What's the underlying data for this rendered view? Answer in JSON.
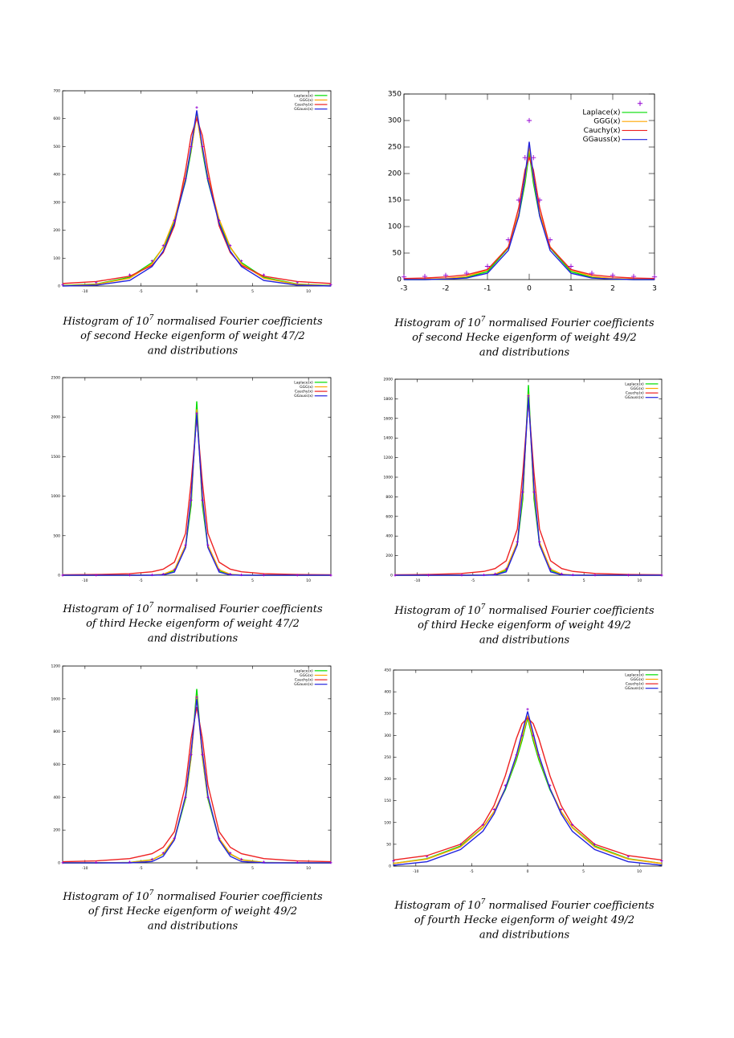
{
  "chart_data": [
    {
      "type": "line",
      "xlim": [
        -12,
        12
      ],
      "ylim": [
        0,
        700
      ],
      "xticks": [
        -10,
        -5,
        0,
        5,
        10
      ],
      "yticks": [
        0,
        100,
        200,
        300,
        400,
        500,
        600,
        700
      ],
      "x": [
        -12,
        -9,
        -6,
        -4,
        -3,
        -2,
        -1,
        -0.5,
        0,
        0.5,
        1,
        2,
        3,
        4,
        6,
        9,
        12
      ],
      "points": {
        "color": "#9400d3",
        "values": [
          5,
          12,
          40,
          90,
          145,
          235,
          385,
          500,
          640,
          500,
          385,
          235,
          145,
          90,
          40,
          12,
          5
        ]
      },
      "series": [
        {
          "name": "Laplace(x)",
          "color": "#00dd00",
          "values": [
            2,
            7,
            31,
            84,
            138,
            228,
            376,
            484,
            620,
            484,
            376,
            228,
            138,
            84,
            31,
            7,
            2
          ]
        },
        {
          "name": "GGG(x)",
          "color": "#ffa500",
          "values": [
            1,
            6,
            28,
            80,
            140,
            240,
            390,
            490,
            610,
            490,
            390,
            240,
            140,
            80,
            28,
            6,
            1
          ]
        },
        {
          "name": "Cauchy(x)",
          "color": "#ee2222",
          "values": [
            9,
            16,
            35,
            74,
            120,
            216,
            415,
            540,
            600,
            540,
            415,
            216,
            120,
            74,
            35,
            16,
            9
          ]
        },
        {
          "name": "GGauss(x)",
          "color": "#2222dd",
          "values": [
            0,
            3,
            20,
            70,
            125,
            225,
            380,
            500,
            630,
            500,
            380,
            225,
            125,
            70,
            20,
            3,
            0
          ]
        }
      ],
      "caption": [
        "Histogram of 10",
        "7",
        " normalised Fourier coefficients",
        "of second Hecke eigenform of weight 47/2",
        "and distributions"
      ]
    },
    {
      "type": "line",
      "xlim": [
        -3,
        3
      ],
      "ylim": [
        0,
        350
      ],
      "xticks": [
        -3,
        -2,
        -1,
        0,
        1,
        2,
        3
      ],
      "yticks": [
        0,
        50,
        100,
        150,
        200,
        250,
        300,
        350
      ],
      "x": [
        -3,
        -2.5,
        -2,
        -1.5,
        -1,
        -0.5,
        -0.25,
        -0.1,
        0,
        0.1,
        0.25,
        0.5,
        1,
        1.5,
        2,
        2.5,
        3
      ],
      "points": {
        "color": "#9400d3",
        "values": [
          5,
          6,
          8,
          12,
          25,
          75,
          150,
          230,
          300,
          230,
          150,
          75,
          25,
          12,
          8,
          6,
          5
        ]
      },
      "series": [
        {
          "name": "Laplace(x)",
          "color": "#00dd00",
          "values": [
            0,
            0,
            1,
            4,
            15,
            60,
            120,
            182,
            240,
            182,
            120,
            60,
            15,
            4,
            1,
            0,
            0
          ]
        },
        {
          "name": "GGG(x)",
          "color": "#ffa500",
          "values": [
            0,
            1,
            2,
            6,
            18,
            62,
            125,
            190,
            250,
            190,
            125,
            62,
            18,
            6,
            2,
            1,
            0
          ]
        },
        {
          "name": "Cauchy(x)",
          "color": "#ee2222",
          "values": [
            2,
            3,
            5,
            9,
            19,
            61,
            136,
            207,
            230,
            207,
            136,
            61,
            19,
            9,
            5,
            3,
            2
          ]
        },
        {
          "name": "GGauss(x)",
          "color": "#2222dd",
          "values": [
            0,
            0,
            1,
            3,
            12,
            55,
            120,
            195,
            260,
            195,
            120,
            55,
            12,
            3,
            1,
            0,
            0
          ]
        }
      ],
      "caption": [
        "Histogram of 10",
        "7",
        " normalised Fourier coefficients",
        "of second Hecke eigenform of weight 49/2",
        "and distributions"
      ]
    },
    {
      "type": "line",
      "xlim": [
        -12,
        12
      ],
      "ylim": [
        0,
        2500
      ],
      "xticks": [
        -10,
        -5,
        0,
        5,
        10
      ],
      "yticks": [
        0,
        500,
        1000,
        1500,
        2000,
        2500
      ],
      "x": [
        -12,
        -9,
        -6,
        -4,
        -3,
        -2,
        -1,
        -0.5,
        0,
        0.5,
        1,
        2,
        3,
        4,
        6,
        9,
        12
      ],
      "points": {
        "color": "#9400d3",
        "values": [
          0,
          1,
          2,
          5,
          15,
          70,
          380,
          950,
          2050,
          950,
          380,
          70,
          15,
          5,
          2,
          1,
          0
        ]
      },
      "series": [
        {
          "name": "Laplace(x)",
          "color": "#00dd00",
          "values": [
            0,
            0,
            0,
            2,
            9,
            58,
            357,
            885,
            2200,
            885,
            357,
            58,
            9,
            2,
            0,
            0,
            0
          ]
        },
        {
          "name": "GGG(x)",
          "color": "#ffa500",
          "values": [
            0,
            0,
            0,
            2,
            12,
            70,
            380,
            950,
            2100,
            950,
            380,
            70,
            12,
            2,
            0,
            0,
            0
          ]
        },
        {
          "name": "Cauchy(x)",
          "color": "#ee2222",
          "values": [
            5,
            9,
            20,
            44,
            77,
            165,
            530,
            1180,
            2000,
            1180,
            530,
            165,
            77,
            44,
            20,
            9,
            5
          ]
        },
        {
          "name": "GGauss(x)",
          "color": "#2222dd",
          "values": [
            0,
            0,
            0,
            0,
            4,
            40,
            350,
            1000,
            2050,
            1000,
            350,
            40,
            4,
            0,
            0,
            0,
            0
          ]
        }
      ],
      "caption": [
        "Histogram of 10",
        "7",
        " normalised Fourier coefficients",
        "of third Hecke eigenform of weight 47/2",
        "and distributions"
      ]
    },
    {
      "type": "line",
      "xlim": [
        -12,
        12
      ],
      "ylim": [
        0,
        2000
      ],
      "xticks": [
        -10,
        -5,
        0,
        5,
        10
      ],
      "yticks": [
        0,
        200,
        400,
        600,
        800,
        1000,
        1200,
        1400,
        1600,
        1800,
        2000
      ],
      "x": [
        -12,
        -9,
        -6,
        -4,
        -3,
        -2,
        -1,
        -0.5,
        0,
        0.5,
        1,
        2,
        3,
        4,
        6,
        9,
        12
      ],
      "points": {
        "color": "#9400d3",
        "values": [
          0,
          1,
          2,
          4,
          14,
          65,
          340,
          850,
          1830,
          850,
          340,
          65,
          14,
          4,
          2,
          1,
          0
        ]
      },
      "series": [
        {
          "name": "Laplace(x)",
          "color": "#00dd00",
          "values": [
            0,
            0,
            0,
            2,
            8,
            51,
            315,
            780,
            1940,
            780,
            315,
            51,
            8,
            2,
            0,
            0,
            0
          ]
        },
        {
          "name": "GGG(x)",
          "color": "#ffa500",
          "values": [
            0,
            0,
            0,
            2,
            11,
            62,
            335,
            840,
            1850,
            840,
            335,
            62,
            11,
            2,
            0,
            0,
            0
          ]
        },
        {
          "name": "Cauchy(x)",
          "color": "#ee2222",
          "values": [
            4,
            8,
            18,
            39,
            68,
            147,
            470,
            1050,
            1780,
            1050,
            470,
            147,
            68,
            39,
            18,
            8,
            4
          ]
        },
        {
          "name": "GGauss(x)",
          "color": "#2222dd",
          "values": [
            0,
            0,
            0,
            0,
            4,
            35,
            310,
            890,
            1820,
            890,
            310,
            35,
            4,
            0,
            0,
            0,
            0
          ]
        }
      ],
      "caption": [
        "Histogram of 10",
        "7",
        " normalised Fourier coefficients",
        "of third Hecke eigenform of weight 49/2",
        "and distributions"
      ]
    },
    {
      "type": "line",
      "xlim": [
        -12,
        12
      ],
      "ylim": [
        0,
        1200
      ],
      "xticks": [
        -10,
        -5,
        0,
        5,
        10
      ],
      "yticks": [
        0,
        200,
        400,
        600,
        800,
        1000,
        1200
      ],
      "x": [
        -12,
        -9,
        -6,
        -4,
        -3,
        -2,
        -1,
        -0.5,
        0,
        0.5,
        1,
        2,
        3,
        4,
        6,
        9,
        12
      ],
      "points": {
        "color": "#9400d3",
        "values": [
          1,
          2,
          5,
          22,
          60,
          150,
          400,
          660,
          1010,
          660,
          400,
          150,
          60,
          22,
          5,
          2,
          1
        ]
      },
      "series": [
        {
          "name": "Laplace(x)",
          "color": "#00dd00",
          "values": [
            0,
            0,
            3,
            19,
            53,
            143,
            390,
            643,
            1060,
            643,
            390,
            143,
            53,
            19,
            3,
            0,
            0
          ]
        },
        {
          "name": "GGG(x)",
          "color": "#ffa500",
          "values": [
            0,
            0,
            2,
            18,
            55,
            150,
            400,
            650,
            1020,
            650,
            400,
            150,
            55,
            18,
            2,
            0,
            0
          ]
        },
        {
          "name": "Cauchy(x)",
          "color": "#ee2222",
          "values": [
            7,
            12,
            26,
            56,
            95,
            190,
            475,
            760,
            950,
            760,
            475,
            190,
            95,
            56,
            26,
            12,
            7
          ]
        },
        {
          "name": "GGauss(x)",
          "color": "#2222dd",
          "values": [
            0,
            0,
            0,
            8,
            40,
            140,
            410,
            680,
            1000,
            680,
            410,
            140,
            40,
            8,
            0,
            0,
            0
          ]
        }
      ],
      "caption": [
        "Histogram of 10",
        "7",
        " normalised Fourier coefficients",
        "of first Hecke eigenform of weight 49/2",
        "and distributions"
      ]
    },
    {
      "type": "line",
      "xlim": [
        -12,
        12
      ],
      "ylim": [
        0,
        450
      ],
      "xticks": [
        -10,
        -5,
        0,
        5,
        10
      ],
      "yticks": [
        0,
        50,
        100,
        150,
        200,
        250,
        300,
        350,
        400,
        450
      ],
      "x": [
        -12,
        -9,
        -6,
        -4,
        -3,
        -2,
        -1,
        -0.5,
        0,
        0.5,
        1,
        2,
        3,
        4,
        6,
        9,
        12
      ],
      "points": {
        "color": "#9400d3",
        "values": [
          12,
          22,
          50,
          95,
          130,
          185,
          255,
          300,
          360,
          300,
          255,
          185,
          130,
          95,
          50,
          22,
          12
        ]
      },
      "series": [
        {
          "name": "Laplace(x)",
          "color": "#00dd00",
          "values": [
            6,
            17,
            46,
            89,
            125,
            175,
            244,
            288,
            340,
            288,
            244,
            175,
            125,
            89,
            46,
            17,
            6
          ]
        },
        {
          "name": "GGG(x)",
          "color": "#ffa500",
          "values": [
            6,
            16,
            44,
            88,
            125,
            178,
            250,
            295,
            345,
            295,
            250,
            178,
            125,
            88,
            44,
            16,
            6
          ]
        },
        {
          "name": "Cauchy(x)",
          "color": "#ee2222",
          "values": [
            14,
            24,
            50,
            95,
            139,
            207,
            293,
            327,
            340,
            327,
            293,
            207,
            139,
            95,
            50,
            24,
            14
          ]
        },
        {
          "name": "GGauss(x)",
          "color": "#2222dd",
          "values": [
            2,
            10,
            38,
            80,
            120,
            178,
            255,
            305,
            355,
            305,
            255,
            178,
            120,
            80,
            38,
            10,
            2
          ]
        }
      ],
      "caption": [
        "Histogram of 10",
        "7",
        " normalised Fourier coefficients",
        "of fourth Hecke eigenform of weight 49/2",
        "and distributions"
      ]
    }
  ]
}
